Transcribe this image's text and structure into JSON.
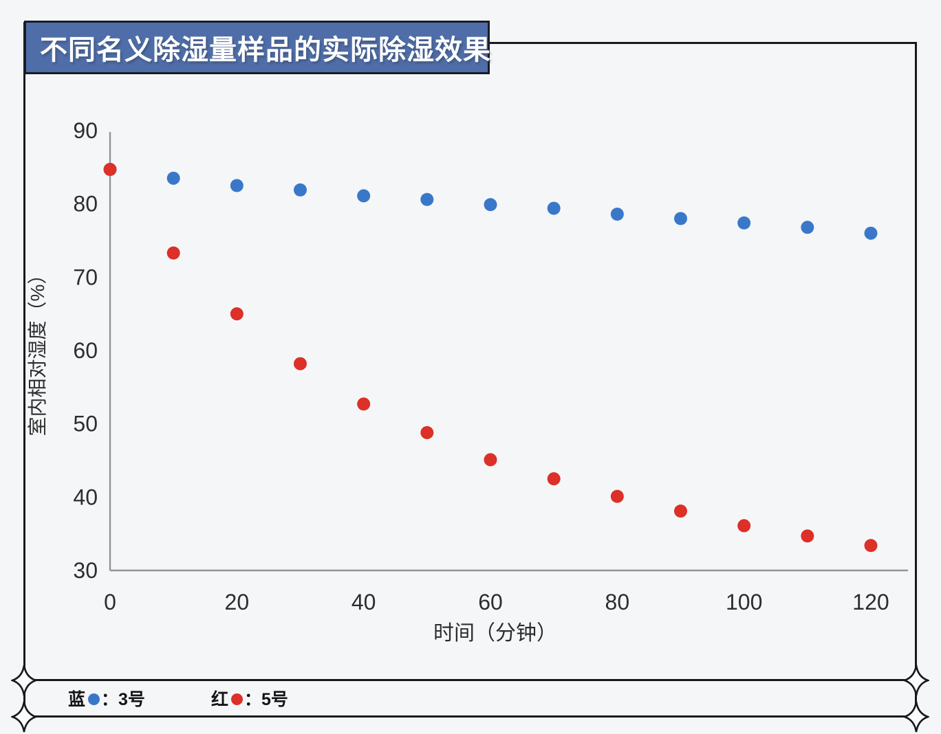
{
  "title_banner": {
    "text": "不同名义除湿量样品的实际除湿效果",
    "background": "#4f6ea9",
    "text_color": "#ffffff"
  },
  "chart_data": {
    "type": "scatter",
    "x": [
      0,
      10,
      20,
      30,
      40,
      50,
      60,
      70,
      80,
      90,
      100,
      110,
      120
    ],
    "series": [
      {
        "name": "3号",
        "legend_color_word": "蓝",
        "color": "#3978c8",
        "values": [
          84.7,
          83.5,
          82.5,
          81.9,
          81.1,
          80.6,
          79.9,
          79.4,
          78.6,
          78.0,
          77.4,
          76.8,
          76.0
        ]
      },
      {
        "name": "5号",
        "legend_color_word": "红",
        "color": "#dc3028",
        "values": [
          84.7,
          73.3,
          65.0,
          58.2,
          52.7,
          48.8,
          45.1,
          42.5,
          40.1,
          38.1,
          36.1,
          34.7,
          33.4
        ]
      }
    ],
    "xlabel": "时间（分钟）",
    "ylabel": "室内相对湿度（%）",
    "xlim": [
      0,
      120
    ],
    "ylim": [
      30,
      90
    ],
    "x_ticks": [
      0,
      20,
      40,
      60,
      80,
      100,
      120
    ],
    "y_ticks": [
      90,
      80,
      70,
      60,
      50,
      40,
      30
    ],
    "grid": false,
    "legend_position": "bottom",
    "axis_color": "#8f9398",
    "tick_color": "#2d2d2d"
  },
  "legend": {
    "items": [
      {
        "prefix": "蓝",
        "separator": "：",
        "label": "3号",
        "color": "#3978c8"
      },
      {
        "prefix": "红",
        "separator": "：",
        "label": "5号",
        "color": "#dc3028"
      }
    ]
  }
}
